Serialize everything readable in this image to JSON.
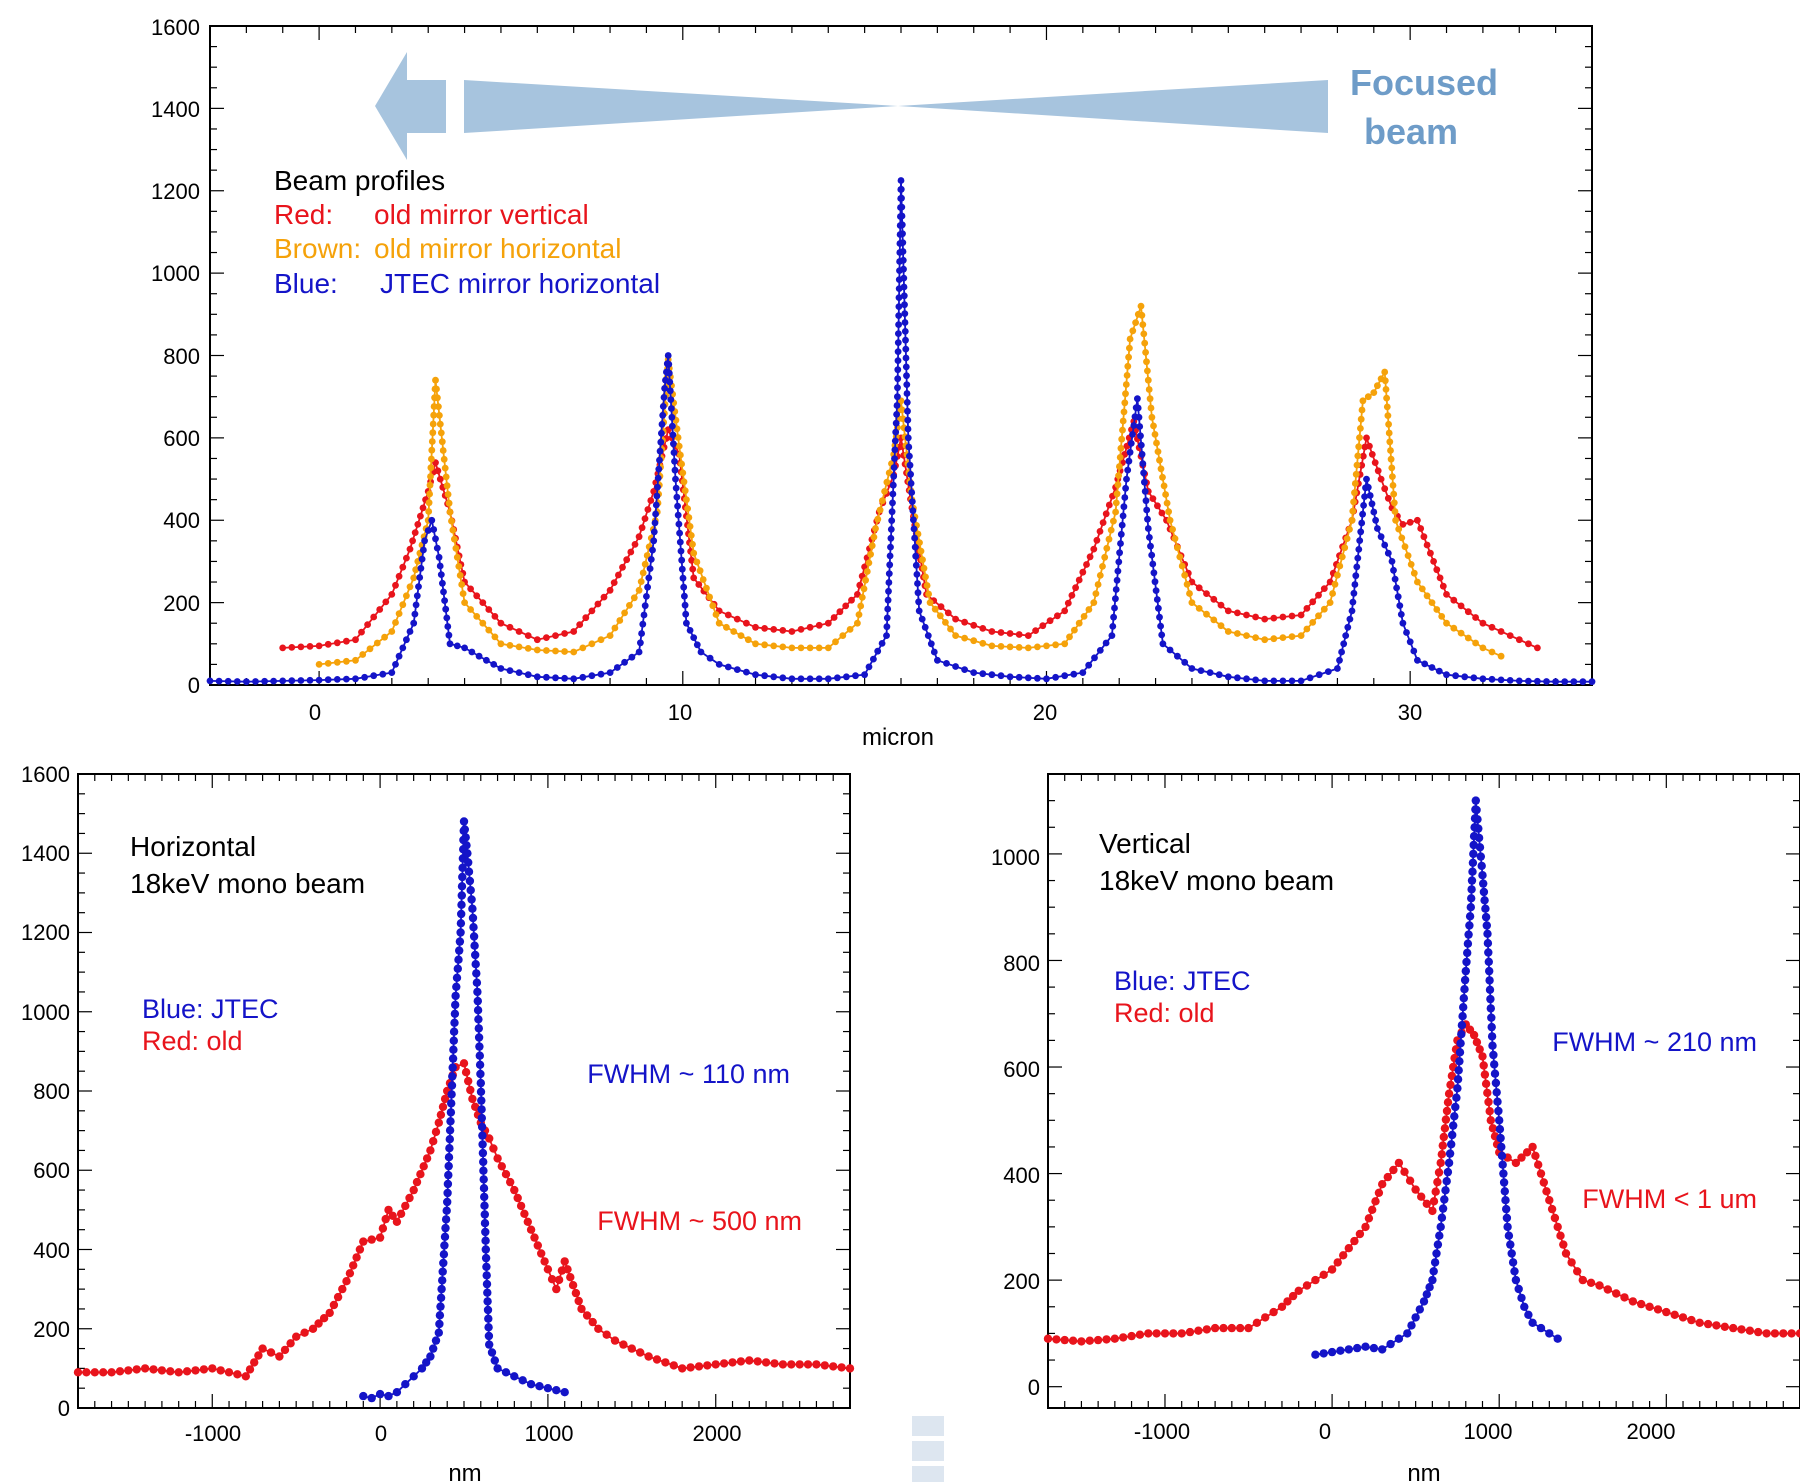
{
  "colors": {
    "red": "#e8141c",
    "brown": "#f5a20a",
    "blue": "#1414c8",
    "arrow": "#a7c4de",
    "focus_text": "#6e9cc8"
  },
  "chart_data": [
    {
      "type": "line",
      "xlabel": "micron",
      "ylabel": "",
      "xlim": [
        -3,
        35
      ],
      "ylim": [
        0,
        1600
      ],
      "xticks": [
        "0",
        "10",
        "20",
        "30"
      ],
      "yticks": [
        "0",
        "200",
        "400",
        "600",
        "800",
        "1000",
        "1200",
        "1400",
        "1600"
      ],
      "annotation": {
        "line1": "Focused",
        "line2": "beam"
      },
      "legend_title": "Beam profiles",
      "legend": [
        {
          "prefix": "Red:",
          "text": "old mirror vertical",
          "color": "#e8141c"
        },
        {
          "prefix": "Brown:",
          "text": "old mirror horizontal",
          "color": "#f5a20a"
        },
        {
          "prefix": "Blue:",
          "text": "JTEC mirror horizontal",
          "color": "#1414c8"
        }
      ],
      "series": [
        {
          "color": "#e8141c",
          "x": [
            -1,
            0,
            1,
            2,
            2.5,
            3,
            3.2,
            3.6,
            4,
            5,
            6,
            7,
            8,
            8.8,
            9.2,
            9.6,
            9.9,
            10.3,
            11,
            12,
            13,
            14,
            14.8,
            15.4,
            15.8,
            16.0,
            16.3,
            16.7,
            17.5,
            18.5,
            19.5,
            20.5,
            21.3,
            21.9,
            22.4,
            22.8,
            23.3,
            24,
            25,
            26,
            27,
            27.8,
            28.4,
            28.8,
            29.2,
            29.5,
            29.8,
            30.2,
            31,
            32,
            33,
            33.5
          ],
          "y": [
            90,
            95,
            110,
            220,
            330,
            470,
            540,
            420,
            250,
            150,
            110,
            130,
            230,
            360,
            470,
            620,
            560,
            260,
            180,
            140,
            130,
            150,
            220,
            420,
            510,
            600,
            430,
            220,
            160,
            130,
            120,
            180,
            330,
            480,
            640,
            470,
            400,
            250,
            180,
            160,
            170,
            250,
            400,
            600,
            500,
            430,
            390,
            400,
            220,
            150,
            110,
            90
          ]
        },
        {
          "color": "#f5a20a",
          "x": [
            0,
            1,
            2,
            2.6,
            3.0,
            3.2,
            3.6,
            4,
            5,
            6,
            7,
            8,
            8.8,
            9.3,
            9.6,
            9.9,
            10.3,
            11,
            12,
            13,
            14,
            14.8,
            15.3,
            15.8,
            16.0,
            16.3,
            16.8,
            17.5,
            18.5,
            19.5,
            20.5,
            21.3,
            21.9,
            22.3,
            22.6,
            22.9,
            23.4,
            24,
            25,
            26,
            27,
            27.8,
            28.4,
            28.7,
            29.0,
            29.3,
            29.6,
            30.2,
            31,
            32,
            32.5
          ],
          "y": [
            50,
            60,
            130,
            260,
            400,
            740,
            420,
            200,
            100,
            85,
            80,
            120,
            230,
            420,
            790,
            580,
            320,
            150,
            100,
            90,
            90,
            150,
            380,
            560,
            690,
            450,
            200,
            120,
            95,
            90,
            100,
            200,
            420,
            840,
            920,
            650,
            400,
            200,
            130,
            110,
            120,
            200,
            400,
            690,
            710,
            760,
            400,
            250,
            150,
            90,
            70
          ]
        },
        {
          "color": "#1414c8",
          "x": [
            -3,
            -2,
            -1,
            0,
            1,
            2,
            2.6,
            2.9,
            3.1,
            3.3,
            3.6,
            4,
            5,
            6,
            7,
            8,
            8.8,
            9.2,
            9.5,
            9.6,
            9.8,
            10.1,
            10.5,
            11,
            12,
            13,
            14,
            15,
            15.6,
            15.9,
            16.0,
            16.2,
            16.5,
            17,
            18,
            19,
            20,
            21,
            21.8,
            22.2,
            22.5,
            22.8,
            23.2,
            24,
            25,
            26,
            27,
            28,
            28.4,
            28.8,
            29.1,
            29.5,
            29.8,
            30.2,
            31,
            32,
            33,
            34,
            35
          ],
          "y": [
            10,
            8,
            10,
            12,
            15,
            30,
            150,
            350,
            400,
            310,
            100,
            90,
            40,
            20,
            15,
            30,
            80,
            350,
            720,
            800,
            500,
            150,
            80,
            50,
            25,
            15,
            15,
            25,
            120,
            700,
            1225,
            600,
            180,
            60,
            30,
            20,
            15,
            30,
            120,
            500,
            695,
            380,
            100,
            40,
            20,
            10,
            10,
            40,
            180,
            500,
            380,
            300,
            150,
            60,
            25,
            15,
            10,
            8,
            8
          ]
        }
      ]
    },
    {
      "type": "line",
      "xlabel": "nm",
      "ylabel": "",
      "xlim": [
        -1800,
        2800
      ],
      "ylim": [
        0,
        1600
      ],
      "xticks": [
        "-1000",
        "0",
        "1000",
        "2000"
      ],
      "yticks": [
        "0",
        "200",
        "400",
        "600",
        "800",
        "1000",
        "1200",
        "1400",
        "1600"
      ],
      "title_line1": "Horizontal",
      "title_line2": "18keV mono beam",
      "legend_line1": "Blue:  JTEC",
      "legend_line2": "Red: old",
      "note_blue": "FWHM ~ 110 nm",
      "note_red": "FWHM ~ 500 nm",
      "series": [
        {
          "color": "#e8141c",
          "x": [
            -1800,
            -1600,
            -1400,
            -1200,
            -1000,
            -800,
            -700,
            -600,
            -500,
            -400,
            -300,
            -200,
            -100,
            0,
            50,
            100,
            200,
            300,
            350,
            400,
            450,
            500,
            550,
            600,
            650,
            700,
            800,
            900,
            1000,
            1050,
            1100,
            1200,
            1300,
            1400,
            1500,
            1600,
            1800,
            2000,
            2200,
            2400,
            2600,
            2800
          ],
          "y": [
            90,
            90,
            100,
            90,
            100,
            80,
            150,
            130,
            180,
            200,
            240,
            320,
            420,
            430,
            500,
            470,
            550,
            650,
            720,
            800,
            860,
            870,
            780,
            720,
            680,
            630,
            550,
            450,
            350,
            300,
            370,
            250,
            200,
            170,
            150,
            130,
            100,
            110,
            120,
            110,
            110,
            100
          ]
        },
        {
          "color": "#1414c8",
          "x": [
            -100,
            -50,
            0,
            50,
            100,
            150,
            200,
            250,
            300,
            350,
            400,
            450,
            480,
            500,
            520,
            550,
            580,
            600,
            630,
            650,
            700,
            750,
            800,
            900,
            1000,
            1100
          ],
          "y": [
            30,
            25,
            35,
            30,
            40,
            60,
            80,
            100,
            130,
            190,
            520,
            1040,
            1200,
            1480,
            1400,
            1260,
            1050,
            820,
            400,
            160,
            100,
            90,
            80,
            60,
            50,
            40
          ]
        }
      ]
    },
    {
      "type": "line",
      "xlabel": "nm",
      "ylabel": "",
      "xlim": [
        -1700,
        2800
      ],
      "ylim": [
        -40,
        1150
      ],
      "xticks": [
        "-1000",
        "0",
        "1000",
        "2000"
      ],
      "yticks": [
        "0",
        "200",
        "400",
        "600",
        "800",
        "1000"
      ],
      "title_line1": "Vertical",
      "title_line2": "18keV mono beam",
      "legend_line1": "Blue:  JTEC",
      "legend_line2": "Red: old",
      "note_blue": "FWHM ~ 210 nm",
      "note_red": "FWHM < 1 um",
      "series": [
        {
          "color": "#e8141c",
          "x": [
            -1700,
            -1500,
            -1300,
            -1100,
            -900,
            -700,
            -500,
            -300,
            -200,
            -100,
            0,
            100,
            200,
            300,
            400,
            500,
            600,
            650,
            700,
            750,
            800,
            850,
            900,
            950,
            1000,
            1050,
            1100,
            1200,
            1300,
            1400,
            1500,
            1600,
            1800,
            2000,
            2200,
            2400,
            2600,
            2800
          ],
          "y": [
            90,
            85,
            90,
            100,
            100,
            110,
            110,
            150,
            180,
            200,
            220,
            260,
            300,
            380,
            420,
            370,
            330,
            420,
            550,
            650,
            680,
            660,
            620,
            500,
            440,
            430,
            420,
            450,
            350,
            250,
            200,
            190,
            160,
            140,
            120,
            110,
            100,
            100
          ]
        },
        {
          "color": "#1414c8",
          "x": [
            -100,
            0,
            100,
            200,
            300,
            350,
            400,
            450,
            500,
            550,
            600,
            650,
            700,
            750,
            800,
            830,
            860,
            880,
            900,
            930,
            960,
            1000,
            1050,
            1100,
            1150,
            1200,
            1300,
            1350
          ],
          "y": [
            60,
            65,
            70,
            75,
            70,
            80,
            90,
            100,
            130,
            160,
            200,
            300,
            420,
            560,
            780,
            900,
            1100,
            1030,
            960,
            850,
            640,
            500,
            300,
            200,
            150,
            120,
            100,
            90
          ]
        }
      ]
    }
  ]
}
